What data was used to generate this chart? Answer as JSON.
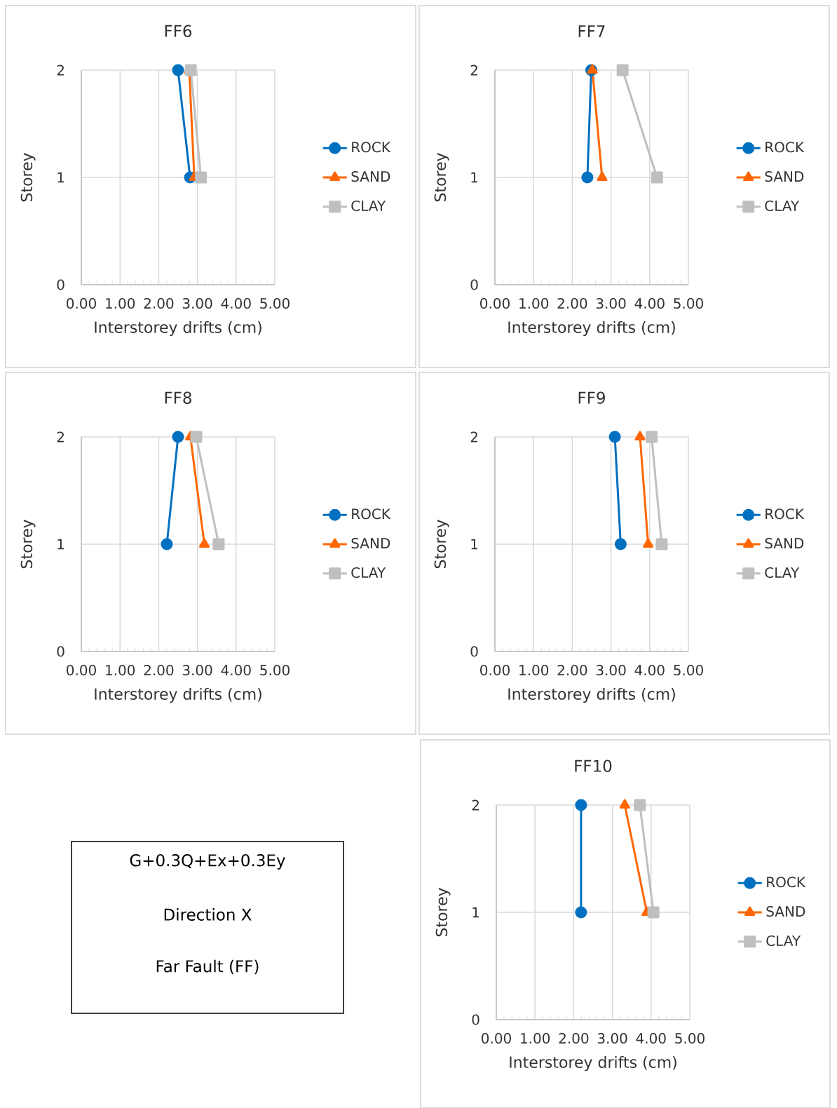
{
  "chart_data": [
    {
      "type": "line",
      "title": "FF6",
      "xlabel": "Interstorey drifts (cm)",
      "ylabel": "Storey",
      "xlim": [
        0,
        5
      ],
      "ylim": [
        0,
        2
      ],
      "xticks": [
        {
          "value": 0,
          "label": "0.00"
        },
        {
          "value": 1,
          "label": "1.00"
        },
        {
          "value": 2,
          "label": "2.00"
        },
        {
          "value": 3,
          "label": "3.00"
        },
        {
          "value": 4,
          "label": "4.00"
        },
        {
          "value": 5,
          "label": "5.00"
        }
      ],
      "yticks": [
        0,
        1,
        2
      ],
      "grid": true,
      "legend": "right",
      "line_style": "solid",
      "series": [
        {
          "name": "ROCK",
          "color": "#0070c0",
          "marker": "circle",
          "x": [
            2.81,
            2.5
          ],
          "values": [
            1,
            2
          ]
        },
        {
          "name": "SAND",
          "color": "#ff6600",
          "marker": "triangle",
          "x": [
            2.92,
            2.79
          ],
          "values": [
            1,
            2
          ]
        },
        {
          "name": "CLAY",
          "color": "#bfbfbf",
          "marker": "square",
          "x": [
            3.09,
            2.83
          ],
          "values": [
            1,
            2
          ]
        }
      ]
    },
    {
      "type": "line",
      "title": "FF7",
      "xlabel": "Interstorey drifts (cm)",
      "ylabel": "Storey",
      "xlim": [
        0,
        5
      ],
      "ylim": [
        0,
        2
      ],
      "xticks": [
        {
          "value": 0,
          "label": "0.00"
        },
        {
          "value": 1,
          "label": "1.00"
        },
        {
          "value": 2,
          "label": "2.00"
        },
        {
          "value": 3,
          "label": "3.00"
        },
        {
          "value": 4,
          "label": "4.00"
        },
        {
          "value": 5,
          "label": "5.00"
        }
      ],
      "yticks": [
        0,
        1,
        2
      ],
      "grid": true,
      "legend": "right",
      "line_style": "solid",
      "series": [
        {
          "name": "ROCK",
          "color": "#0070c0",
          "marker": "circle",
          "x": [
            2.39,
            2.49
          ],
          "values": [
            1,
            2
          ]
        },
        {
          "name": "SAND",
          "color": "#ff6600",
          "marker": "triangle",
          "x": [
            2.77,
            2.52
          ],
          "values": [
            1,
            2
          ]
        },
        {
          "name": "CLAY",
          "color": "#bfbfbf",
          "marker": "square",
          "x": [
            4.19,
            3.3
          ],
          "values": [
            1,
            2
          ]
        }
      ]
    },
    {
      "type": "line",
      "title": "FF8",
      "xlabel": "Interstorey drifts (cm)",
      "ylabel": "Storey",
      "xlim": [
        0,
        5
      ],
      "ylim": [
        0,
        2
      ],
      "xticks": [
        {
          "value": 0,
          "label": "0.00"
        },
        {
          "value": 1,
          "label": "1.00"
        },
        {
          "value": 2,
          "label": "2.00"
        },
        {
          "value": 3,
          "label": "3.00"
        },
        {
          "value": 4,
          "label": "4.00"
        },
        {
          "value": 5,
          "label": "5.00"
        }
      ],
      "yticks": [
        0,
        1,
        2
      ],
      "grid": true,
      "legend": "right",
      "line_style": "solid",
      "series": [
        {
          "name": "ROCK",
          "color": "#0070c0",
          "marker": "circle",
          "x": [
            2.21,
            2.5
          ],
          "values": [
            1,
            2
          ]
        },
        {
          "name": "SAND",
          "color": "#ff6600",
          "marker": "triangle",
          "x": [
            3.18,
            2.82
          ],
          "values": [
            1,
            2
          ]
        },
        {
          "name": "CLAY",
          "color": "#bfbfbf",
          "marker": "square",
          "x": [
            3.55,
            2.97
          ],
          "values": [
            1,
            2
          ]
        }
      ]
    },
    {
      "type": "line",
      "title": "FF9",
      "xlabel": "Interstorey drifts (cm)",
      "ylabel": "Storey",
      "xlim": [
        0,
        5
      ],
      "ylim": [
        0,
        2
      ],
      "xticks": [
        {
          "value": 0,
          "label": "0.00"
        },
        {
          "value": 1,
          "label": "1.00"
        },
        {
          "value": 2,
          "label": "2.00"
        },
        {
          "value": 3,
          "label": "3.00"
        },
        {
          "value": 4,
          "label": "4.00"
        },
        {
          "value": 5,
          "label": "5.00"
        }
      ],
      "yticks": [
        0,
        1,
        2
      ],
      "grid": true,
      "legend": "right",
      "line_style": "solid",
      "series": [
        {
          "name": "ROCK",
          "color": "#0070c0",
          "marker": "circle",
          "x": [
            3.25,
            3.1
          ],
          "values": [
            1,
            2
          ]
        },
        {
          "name": "SAND",
          "color": "#ff6600",
          "marker": "triangle",
          "x": [
            3.96,
            3.75
          ],
          "values": [
            1,
            2
          ]
        },
        {
          "name": "CLAY",
          "color": "#bfbfbf",
          "marker": "square",
          "x": [
            4.31,
            4.05
          ],
          "values": [
            1,
            2
          ]
        }
      ]
    },
    {
      "type": "other",
      "annotations": [
        "G+0.3Q+Ex+0.3Ey",
        "Direction X",
        "Far Fault (FF)"
      ]
    },
    {
      "type": "line",
      "title": "FF10",
      "xlabel": "Interstorey drifts (cm)",
      "ylabel": "Storey",
      "xlim": [
        0,
        5
      ],
      "ylim": [
        0,
        2
      ],
      "xticks": [
        {
          "value": 0,
          "label": "0.00"
        },
        {
          "value": 1,
          "label": "1.00"
        },
        {
          "value": 2,
          "label": "2.00"
        },
        {
          "value": 3,
          "label": "3.00"
        },
        {
          "value": 4,
          "label": "4.00"
        },
        {
          "value": 5,
          "label": "5.00"
        }
      ],
      "yticks": [
        0,
        1,
        2
      ],
      "grid": true,
      "legend": "right",
      "line_style": "solid",
      "series": [
        {
          "name": "ROCK",
          "color": "#0070c0",
          "marker": "circle",
          "x": [
            2.19,
            2.19
          ],
          "values": [
            1,
            2
          ]
        },
        {
          "name": "SAND",
          "color": "#ff6600",
          "marker": "triangle",
          "x": [
            3.89,
            3.32
          ],
          "values": [
            1,
            2
          ]
        },
        {
          "name": "CLAY",
          "color": "#bfbfbf",
          "marker": "square",
          "x": [
            4.06,
            3.71
          ],
          "values": [
            1,
            2
          ]
        }
      ]
    }
  ]
}
